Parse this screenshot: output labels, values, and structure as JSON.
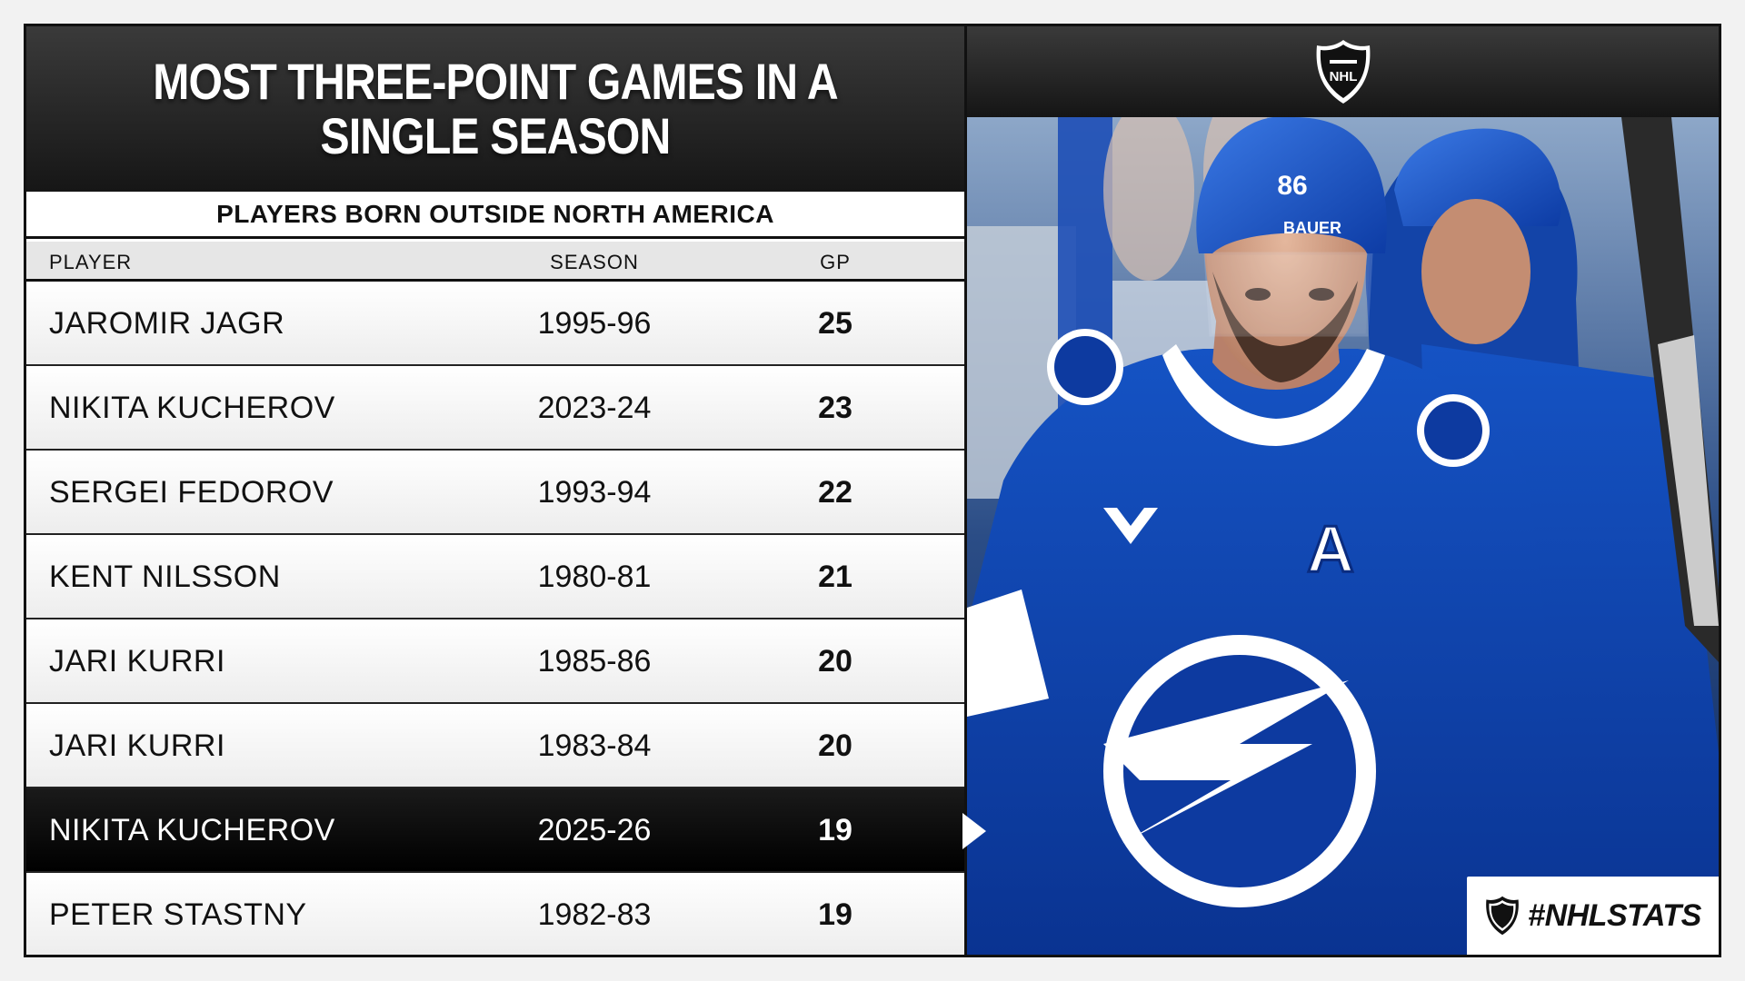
{
  "title": "MOST THREE-POINT GAMES IN A SINGLE SEASON",
  "subtitle": "PLAYERS BORN OUTSIDE NORTH AMERICA",
  "columns": {
    "player": "PLAYER",
    "season": "SEASON",
    "gp": "GP"
  },
  "rows": [
    {
      "player": "JAROMIR JAGR",
      "season": "1995-96",
      "gp": "25"
    },
    {
      "player": "NIKITA KUCHEROV",
      "season": "2023-24",
      "gp": "23"
    },
    {
      "player": "SERGEI FEDOROV",
      "season": "1993-94",
      "gp": "22"
    },
    {
      "player": "KENT NILSSON",
      "season": "1980-81",
      "gp": "21"
    },
    {
      "player": "JARI KURRI",
      "season": "1985-86",
      "gp": "20"
    },
    {
      "player": "JARI KURRI",
      "season": "1983-84",
      "gp": "20"
    },
    {
      "player": "NIKITA KUCHEROV",
      "season": "2025-26",
      "gp": "19",
      "highlighted": true
    },
    {
      "player": "PETER STASTNY",
      "season": "1982-83",
      "gp": "19"
    }
  ],
  "logo": {
    "name": "nhl-shield-logo",
    "text": "NHL"
  },
  "hashtag": "#NHLSTATS",
  "photo": {
    "jersey_number": "86",
    "helmet_brand": "BAUER",
    "captain_letter": "A"
  },
  "colors": {
    "lightning_blue": "#0a3b9c",
    "dark": "#111111",
    "highlight_row": "#000000"
  }
}
